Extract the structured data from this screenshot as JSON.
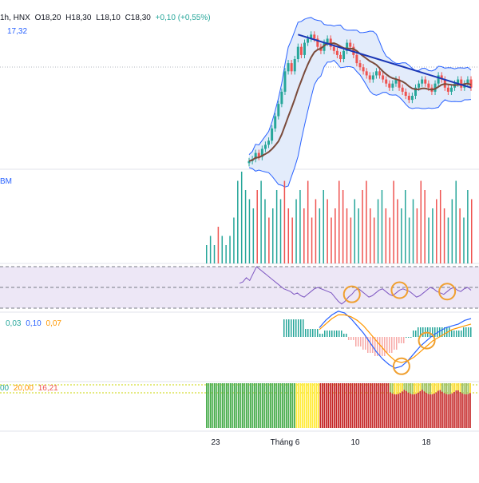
{
  "legend": {
    "symbol": "1h, HNX",
    "open": "O18,20",
    "high": "H18,30",
    "low": "L18,10",
    "close": "C18,30",
    "change": "+0,10 (+0,55%)",
    "ma_value": "17,32",
    "volume_label": "BM",
    "macd_values": [
      "0,03",
      "0,10",
      "0,07"
    ],
    "stoch_values": [
      "00",
      "20,00",
      "16,21"
    ]
  },
  "x_axis_labels": [
    "23",
    "Tháng 6",
    "10",
    "18"
  ],
  "colors": {
    "up": "#26a69a",
    "down": "#ef5350",
    "trendline": "#1a36b5",
    "ma_line": "#7a4a3a",
    "bollinger": "#2962ff",
    "rsi_line": "#7e57c2",
    "rsi_band": "#ede7f6",
    "macd_line": "#2962ff",
    "signal_line": "#ff9800",
    "circle": "#f0a030",
    "stoch_green": "#4caf50",
    "stoch_yellow": "#ffeb3b",
    "stoch_red": "#c62828"
  },
  "chart_data": [
    {
      "type": "candlestick",
      "pane": "price",
      "closes": [
        16.5,
        16.55,
        16.7,
        16.6,
        16.8,
        16.9,
        17.0,
        17.3,
        17.6,
        17.9,
        18.2,
        18.7,
        18.9,
        18.7,
        19.0,
        19.3,
        19.1,
        19.4,
        19.5,
        19.6,
        19.5,
        19.3,
        19.2,
        19.4,
        19.5,
        19.3,
        19.2,
        19.1,
        19.0,
        19.2,
        19.4,
        19.3,
        19.1,
        18.9,
        18.8,
        18.7,
        18.6,
        18.5,
        18.6,
        18.7,
        18.6,
        18.5,
        18.4,
        18.3,
        18.4,
        18.5,
        18.3,
        18.2,
        18.1,
        18.0,
        18.1,
        18.3,
        18.4,
        18.5,
        18.4,
        18.3,
        18.2,
        18.4,
        18.6,
        18.5,
        18.3,
        18.2,
        18.3,
        18.4,
        18.5,
        18.3,
        18.4,
        18.5,
        18.3
      ],
      "ma_value": 17.32,
      "trendline": {
        "from": 19.6,
        "to": 18.3
      }
    },
    {
      "type": "bar",
      "pane": "volume",
      "values": [
        2,
        3,
        2,
        4,
        3,
        2,
        3,
        5,
        9,
        10,
        8,
        7,
        6,
        8,
        9,
        7,
        5,
        6,
        8,
        7,
        9,
        6,
        5,
        7,
        8,
        6,
        9,
        5,
        7,
        6,
        8,
        7,
        5,
        6,
        9,
        8,
        6,
        5,
        7,
        6,
        8,
        9,
        6,
        5,
        7,
        8,
        6,
        5,
        9,
        7,
        6,
        8,
        5,
        7,
        6,
        9,
        8,
        5,
        6,
        7,
        8,
        6,
        5,
        7,
        9,
        6,
        5,
        8,
        7
      ]
    },
    {
      "type": "line",
      "pane": "rsi",
      "values": [
        48,
        49,
        52,
        50,
        55,
        60,
        58,
        56,
        54,
        52,
        50,
        48,
        46,
        44,
        43,
        42,
        40,
        41,
        39,
        38,
        40,
        42,
        44,
        45,
        44,
        43,
        42,
        41,
        38,
        35,
        33,
        35,
        38,
        40,
        43,
        44,
        42,
        40,
        38,
        39,
        41,
        43,
        44,
        42,
        40,
        39,
        41,
        43,
        44,
        43,
        42,
        40,
        38,
        39,
        41,
        43,
        45,
        44,
        42,
        41,
        40,
        42,
        44,
        45,
        43,
        42,
        44,
        45,
        43
      ],
      "highlight_indices": [
        33,
        47,
        61
      ]
    },
    {
      "type": "line",
      "pane": "macd",
      "macd": [
        0.05,
        0.09,
        0.12,
        0.14,
        0.13,
        0.1,
        0.06,
        0.02,
        -0.03,
        -0.08,
        -0.12,
        -0.15,
        -0.17,
        -0.16,
        -0.13,
        -0.09,
        -0.05,
        -0.02,
        0.01,
        0.03,
        0.05,
        0.06,
        0.07,
        0.09,
        0.1
      ],
      "signal": [
        0.04,
        0.07,
        0.1,
        0.12,
        0.12,
        0.11,
        0.09,
        0.06,
        0.02,
        -0.02,
        -0.06,
        -0.1,
        -0.13,
        -0.14,
        -0.13,
        -0.11,
        -0.08,
        -0.05,
        -0.02,
        0.0,
        0.02,
        0.04,
        0.05,
        0.06,
        0.07
      ],
      "highlight_indices": [
        13,
        17
      ]
    },
    {
      "type": "bar",
      "pane": "stochastic",
      "segments": [
        "green",
        "yellow",
        "red"
      ]
    }
  ]
}
